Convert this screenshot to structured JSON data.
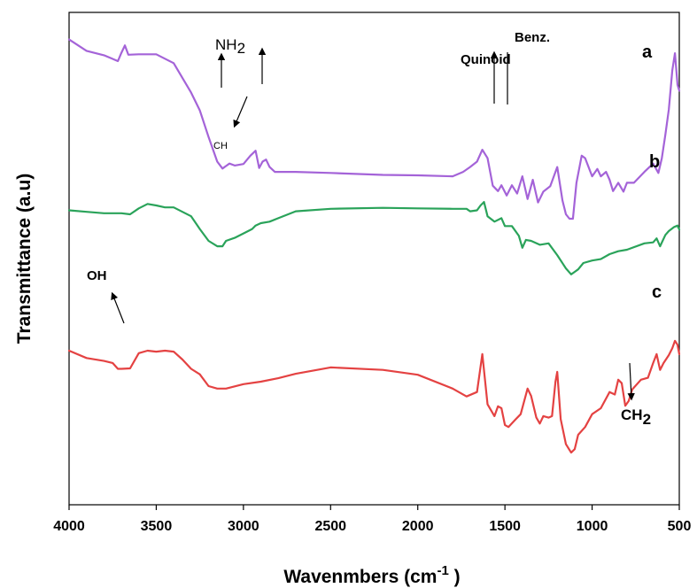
{
  "chart_data": {
    "type": "line",
    "xlabel_main": "Wavenmbers (cm",
    "xlabel_sup": "-1",
    "xlabel_end": " )",
    "ylabel": "Transmittance (a.u)",
    "xlim": [
      4000,
      500
    ],
    "x_reversed": true,
    "grid": false,
    "x_ticks": [
      "4000",
      "3500",
      "3000",
      "2500",
      "2000",
      "1500",
      "1000",
      "500"
    ],
    "x_tick_values": [
      4000,
      3500,
      3000,
      2500,
      2000,
      1500,
      1000,
      500
    ],
    "y_range": [
      0,
      100
    ],
    "series": [
      {
        "name": "a",
        "color": "#a463d8",
        "x": [
          4000,
          3900,
          3800,
          3720,
          3700,
          3680,
          3660,
          3600,
          3500,
          3400,
          3300,
          3250,
          3200,
          3150,
          3120,
          3080,
          3050,
          3000,
          2960,
          2930,
          2910,
          2890,
          2870,
          2850,
          2820,
          2700,
          2500,
          2200,
          2000,
          1800,
          1740,
          1700,
          1660,
          1630,
          1600,
          1570,
          1540,
          1520,
          1490,
          1460,
          1430,
          1400,
          1370,
          1340,
          1310,
          1280,
          1240,
          1200,
          1170,
          1150,
          1130,
          1110,
          1090,
          1060,
          1040,
          1000,
          970,
          950,
          920,
          900,
          880,
          850,
          820,
          800,
          760,
          700,
          650,
          620,
          600,
          580,
          560,
          540,
          525,
          510,
          500
        ],
        "y": [
          94.5,
          92.2,
          91.3,
          90.1,
          91.8,
          93.3,
          91.4,
          91.5,
          91.5,
          89.7,
          83.7,
          80.1,
          74.7,
          69.7,
          68.3,
          69.3,
          68.9,
          69.2,
          70.9,
          71.9,
          68.4,
          69.7,
          70.1,
          68.6,
          67.6,
          67.6,
          67.4,
          67.0,
          66.9,
          66.7,
          67.6,
          68.6,
          69.7,
          72.1,
          70.4,
          64.8,
          63.7,
          64.9,
          62.8,
          64.9,
          63.2,
          66.7,
          62.1,
          66.0,
          61.4,
          63.6,
          64.7,
          68.6,
          61.8,
          59.0,
          58.1,
          58.1,
          65.4,
          70.9,
          70.4,
          66.7,
          68.2,
          66.7,
          67.6,
          66.0,
          63.7,
          65.4,
          63.6,
          65.4,
          65.4,
          67.6,
          69.3,
          67.4,
          70.4,
          75.2,
          80.3,
          88.2,
          91.7,
          85.3,
          84.1
        ]
      },
      {
        "name": "b",
        "color": "#2aa35a",
        "x": [
          4000,
          3900,
          3800,
          3700,
          3650,
          3600,
          3550,
          3500,
          3450,
          3400,
          3300,
          3250,
          3200,
          3150,
          3120,
          3100,
          3050,
          3000,
          2950,
          2930,
          2900,
          2850,
          2800,
          2700,
          2500,
          2200,
          2000,
          1800,
          1720,
          1700,
          1660,
          1640,
          1620,
          1600,
          1560,
          1520,
          1500,
          1460,
          1420,
          1400,
          1380,
          1350,
          1300,
          1250,
          1200,
          1150,
          1120,
          1100,
          1080,
          1050,
          1000,
          950,
          900,
          850,
          800,
          700,
          650,
          630,
          610,
          580,
          560,
          530,
          510,
          500
        ],
        "y": [
          59.8,
          59.5,
          59.2,
          59.2,
          59.0,
          60.2,
          61.1,
          60.8,
          60.4,
          60.4,
          58.6,
          56.0,
          53.6,
          52.5,
          52.5,
          53.6,
          54.2,
          55.1,
          56.0,
          56.7,
          57.2,
          57.5,
          58.2,
          59.6,
          60.1,
          60.3,
          60.2,
          60.1,
          60.1,
          59.6,
          59.8,
          60.8,
          61.5,
          58.6,
          57.5,
          58.2,
          56.6,
          56.6,
          54.6,
          52.2,
          53.8,
          53.6,
          52.8,
          53.1,
          50.7,
          48.0,
          46.8,
          47.3,
          47.8,
          49.1,
          49.6,
          49.9,
          50.9,
          51.5,
          51.8,
          53.1,
          53.3,
          54.1,
          52.5,
          54.8,
          55.6,
          56.4,
          56.7,
          55.9
        ]
      },
      {
        "name": "c",
        "color": "#e44242",
        "x": [
          4000,
          3900,
          3800,
          3750,
          3720,
          3700,
          3650,
          3600,
          3550,
          3500,
          3450,
          3400,
          3350,
          3300,
          3250,
          3200,
          3150,
          3100,
          3000,
          2900,
          2800,
          2700,
          2500,
          2200,
          2000,
          1800,
          1720,
          1660,
          1630,
          1600,
          1560,
          1540,
          1520,
          1500,
          1480,
          1440,
          1410,
          1370,
          1350,
          1320,
          1300,
          1280,
          1250,
          1230,
          1210,
          1200,
          1180,
          1150,
          1120,
          1100,
          1080,
          1040,
          1000,
          950,
          900,
          870,
          850,
          830,
          810,
          790,
          770,
          720,
          680,
          650,
          630,
          610,
          590,
          560,
          540,
          525,
          510,
          500
        ],
        "y": [
          31.3,
          29.8,
          29.2,
          28.8,
          27.6,
          27.6,
          27.7,
          30.8,
          31.3,
          31.1,
          31.3,
          31.1,
          29.5,
          27.6,
          26.5,
          24.1,
          23.6,
          23.6,
          24.5,
          25.0,
          25.7,
          26.6,
          27.9,
          27.4,
          26.4,
          23.6,
          22.0,
          22.9,
          30.6,
          20.4,
          18.0,
          20.0,
          19.6,
          16.2,
          15.8,
          17.3,
          18.4,
          23.6,
          22.1,
          17.7,
          16.5,
          18.0,
          17.7,
          18.0,
          25.0,
          27.0,
          17.4,
          12.3,
          10.6,
          11.3,
          14.2,
          15.8,
          18.4,
          19.6,
          22.9,
          22.4,
          25.4,
          24.7,
          20.1,
          21.1,
          23.4,
          25.4,
          25.8,
          28.8,
          30.6,
          27.4,
          28.8,
          30.4,
          31.8,
          33.3,
          32.5,
          30.6
        ]
      }
    ],
    "curve_labels": [
      "a",
      "b",
      "c"
    ],
    "annotations": {
      "nh2_main": "NH",
      "nh2_sub": "2",
      "ch": "CH",
      "quinoid": "Quinoid",
      "benz": "Benz.",
      "oh": "OH",
      "ch2_main": "CH",
      "ch2_sub": "2"
    }
  }
}
